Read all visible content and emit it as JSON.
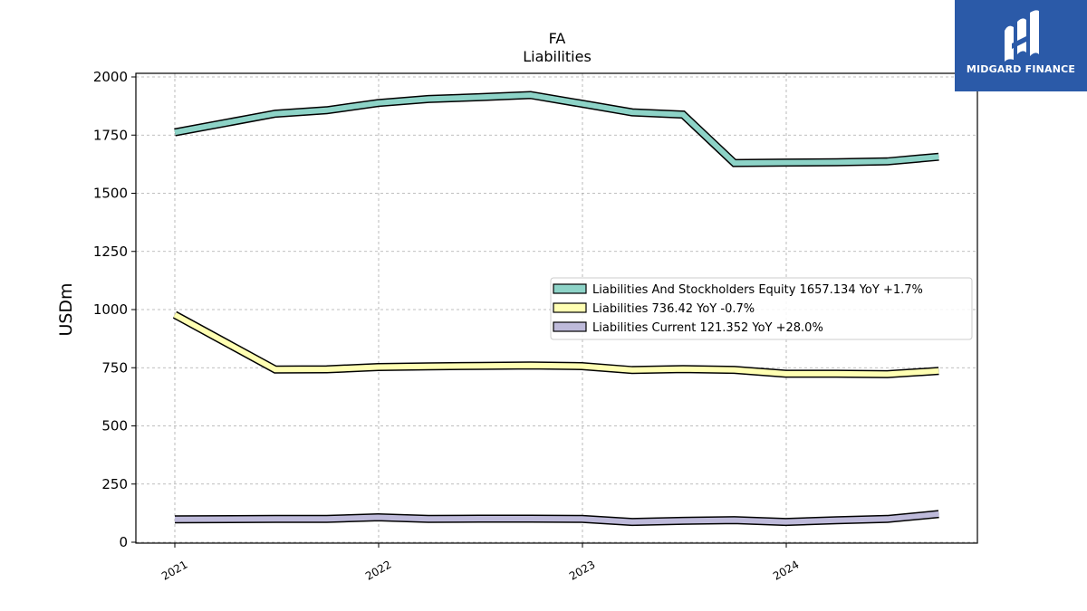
{
  "header": {
    "ticker": "FA",
    "subtitle": "Liabilities"
  },
  "logo": {
    "name": "MIDGARD FINANCE",
    "color": "#2b5aa8"
  },
  "chart_data": {
    "type": "line",
    "title": "FA",
    "subtitle": "Liabilities",
    "ylabel": "USDm",
    "ylim": [
      0,
      2000
    ],
    "yticks": [
      0,
      250,
      500,
      750,
      1000,
      1250,
      1500,
      1750,
      2000
    ],
    "xticks": [
      "2021",
      "2022",
      "2023",
      "2024"
    ],
    "grid": true,
    "legend_position": "center-right",
    "x": [
      "2021-01-01",
      "2021-06-30",
      "2021-09-30",
      "2021-12-31",
      "2022-03-31",
      "2022-06-30",
      "2022-09-30",
      "2022-12-31",
      "2023-03-31",
      "2023-06-30",
      "2023-09-30",
      "2023-12-31",
      "2024-03-31",
      "2024-06-30",
      "2024-09-30"
    ],
    "series": [
      {
        "name": "Liabilities And Stockholders Equity",
        "legend": "Liabilities And Stockholders Equity  1657.134 YoY +1.7%",
        "color": "#8dd3c7",
        "values": [
          1762,
          1842,
          1857,
          1888,
          1905,
          1913,
          1922,
          1885,
          1848,
          1838,
          1630,
          1632,
          1633,
          1637,
          1657
        ]
      },
      {
        "name": "Liabilities",
        "legend": "Liabilities  736.42 YoY -0.7%",
        "color": "#ffffb3",
        "values": [
          978,
          742,
          743,
          753,
          756,
          758,
          760,
          757,
          740,
          744,
          741,
          724,
          724,
          722,
          736
        ]
      },
      {
        "name": "Liabilities Current",
        "legend": "Liabilities Current  121.352 YoY +28.0%",
        "color": "#bebada",
        "values": [
          98,
          100,
          100,
          107,
          100,
          101,
          101,
          100,
          87,
          92,
          95,
          87,
          94,
          100,
          121
        ]
      }
    ]
  }
}
